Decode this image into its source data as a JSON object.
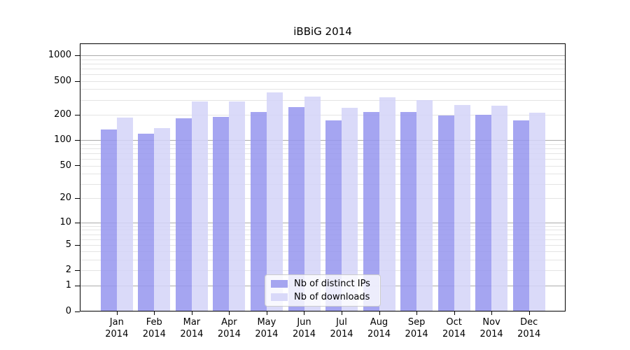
{
  "title": "iBBiG 2014",
  "colors": {
    "bar_dark": "rgba(149,149,238,0.85)",
    "bar_light": "rgba(211,211,248,0.85)",
    "legend_dark": "#a5a5f0",
    "legend_light": "#d9d9f9",
    "grid_major": "#ababab",
    "grid_minor": "#e4e4e4",
    "axis": "#000000"
  },
  "legend": {
    "items": [
      {
        "label": "Nb of distinct IPs"
      },
      {
        "label": "Nb of downloads"
      }
    ]
  },
  "chart_data": {
    "type": "bar",
    "title": "iBBiG 2014",
    "categories": [
      "Jan",
      "Feb",
      "Mar",
      "Apr",
      "May",
      "Jun",
      "Jul",
      "Aug",
      "Sep",
      "Oct",
      "Nov",
      "Dec"
    ],
    "x_tick_line2": "2014",
    "series": [
      {
        "name": "Nb of distinct IPs",
        "color_key": "bar_dark",
        "values": [
          135,
          120,
          180,
          190,
          215,
          245,
          170,
          215,
          215,
          195,
          200,
          170
        ]
      },
      {
        "name": "Nb of downloads",
        "color_key": "bar_light",
        "values": [
          185,
          140,
          285,
          285,
          365,
          330,
          240,
          320,
          300,
          260,
          255,
          210
        ]
      }
    ],
    "yscale": "log10(value+1)",
    "yticks": [
      0,
      1,
      2,
      5,
      10,
      20,
      50,
      100,
      200,
      500,
      1000
    ],
    "ytick_labels": [
      "0",
      "1",
      "2",
      "5",
      "10",
      "20",
      "50",
      "100",
      "200",
      "500",
      "1000"
    ],
    "grid_major_at": [
      1,
      10,
      100,
      1000
    ],
    "grid_minor_at": [
      2,
      3,
      4,
      5,
      6,
      7,
      8,
      9,
      20,
      30,
      40,
      50,
      60,
      70,
      80,
      90,
      200,
      300,
      400,
      500,
      600,
      700,
      800,
      900
    ],
    "ylim": [
      0,
      1380
    ],
    "grid": "both",
    "legend_position": "lower center"
  }
}
